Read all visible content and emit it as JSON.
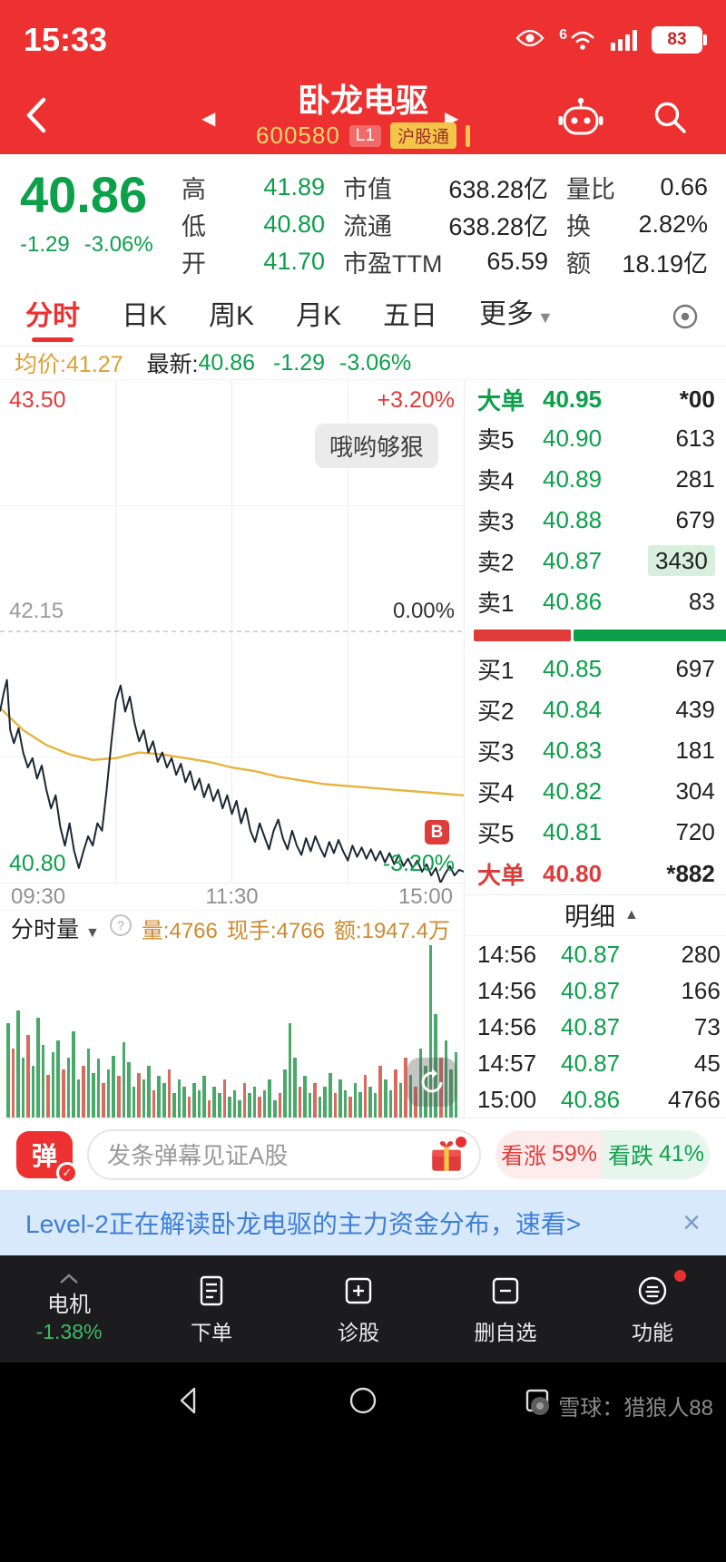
{
  "colors": {
    "accent_red": "#ed3030",
    "up": "#e03b3b",
    "down": "#0ca04a",
    "avg_line": "#e8b33c",
    "price_line": "#1c2733",
    "vol_up": "#d96a5f",
    "vol_down": "#48a968",
    "banner_blue": "#3f7fd6"
  },
  "status_bar": {
    "time": "15:33",
    "wifi_gen": "6",
    "battery": "83"
  },
  "header": {
    "title": "卧龙电驱",
    "code": "600580",
    "l1_badge": "L1",
    "hgt_badge": "沪股通"
  },
  "quote": {
    "price": "40.86",
    "change": "-1.29",
    "change_pct": "-3.06%",
    "col1": [
      {
        "label": "高",
        "value": "41.89"
      },
      {
        "label": "低",
        "value": "40.80"
      },
      {
        "label": "开",
        "value": "41.70"
      }
    ],
    "col2": [
      {
        "label": "市值",
        "value": "638.28亿"
      },
      {
        "label": "流通",
        "value": "638.28亿"
      },
      {
        "label": "市盈TTM",
        "value": "65.59"
      }
    ],
    "col3": [
      {
        "label": "量比",
        "value": "0.66"
      },
      {
        "label": "换",
        "value": "2.82%"
      },
      {
        "label": "额",
        "value": "18.19亿"
      }
    ]
  },
  "tabs": {
    "t0": "分时",
    "t1": "日K",
    "t2": "周K",
    "t3": "月K",
    "t4": "五日",
    "t5": "更多"
  },
  "avg_row": {
    "avg": "均价:41.27",
    "latest_label": "最新:",
    "latest": "40.86",
    "change": "-1.29",
    "change_pct": "-3.06%"
  },
  "chart": {
    "y_max": 43.5,
    "y_min": 40.8,
    "prev_close": 42.15,
    "label_top_price": "43.50",
    "label_top_pct": "+3.20%",
    "label_mid_price": "42.15",
    "label_mid_pct": "0.00%",
    "label_bottom_price": "40.80",
    "label_bottom_pct": "-3.20%",
    "bubble_text": "哦哟够狠",
    "buy_marker": "B",
    "x_labels": [
      "09:30",
      "11:30",
      "15:00"
    ],
    "price_series": [
      [
        0,
        41.72
      ],
      [
        0.8,
        41.82
      ],
      [
        1.5,
        41.89
      ],
      [
        2.2,
        41.62
      ],
      [
        3,
        41.55
      ],
      [
        4,
        41.63
      ],
      [
        5,
        41.5
      ],
      [
        6,
        41.42
      ],
      [
        7,
        41.47
      ],
      [
        8,
        41.36
      ],
      [
        9,
        41.43
      ],
      [
        10,
        41.3
      ],
      [
        11,
        41.2
      ],
      [
        12,
        41.27
      ],
      [
        13,
        41.1
      ],
      [
        14,
        41.0
      ],
      [
        15,
        41.12
      ],
      [
        16,
        40.97
      ],
      [
        17,
        40.88
      ],
      [
        18,
        40.97
      ],
      [
        19,
        41.05
      ],
      [
        20,
        41.0
      ],
      [
        21,
        41.12
      ],
      [
        22,
        41.08
      ],
      [
        23,
        41.3
      ],
      [
        24,
        41.55
      ],
      [
        25,
        41.78
      ],
      [
        26,
        41.86
      ],
      [
        27,
        41.72
      ],
      [
        28,
        41.8
      ],
      [
        29,
        41.66
      ],
      [
        30,
        41.56
      ],
      [
        31,
        41.62
      ],
      [
        32,
        41.5
      ],
      [
        33,
        41.56
      ],
      [
        34,
        41.45
      ],
      [
        35,
        41.5
      ],
      [
        36,
        41.42
      ],
      [
        37,
        41.47
      ],
      [
        38,
        41.38
      ],
      [
        39,
        41.44
      ],
      [
        40,
        41.34
      ],
      [
        41,
        41.4
      ],
      [
        42,
        41.3
      ],
      [
        43,
        41.36
      ],
      [
        44,
        41.26
      ],
      [
        45,
        41.33
      ],
      [
        46,
        41.24
      ],
      [
        47,
        41.3
      ],
      [
        48,
        41.2
      ],
      [
        49,
        41.27
      ],
      [
        50,
        41.17
      ],
      [
        51,
        41.24
      ],
      [
        52,
        41.12
      ],
      [
        53,
        41.2
      ],
      [
        54,
        41.08
      ],
      [
        55,
        41.02
      ],
      [
        56,
        41.12
      ],
      [
        57,
        41.05
      ],
      [
        58,
        40.98
      ],
      [
        59,
        41.08
      ],
      [
        60,
        41.14
      ],
      [
        61,
        41.04
      ],
      [
        62,
        40.98
      ],
      [
        63,
        41.08
      ],
      [
        64,
        41.0
      ],
      [
        65,
        40.95
      ],
      [
        66,
        41.04
      ],
      [
        67,
        40.97
      ],
      [
        68,
        41.05
      ],
      [
        69,
        40.99
      ],
      [
        70,
        40.94
      ],
      [
        71,
        41.02
      ],
      [
        72,
        40.96
      ],
      [
        73,
        41.03
      ],
      [
        74,
        40.97
      ],
      [
        75,
        40.92
      ],
      [
        76,
        41.0
      ],
      [
        77,
        40.94
      ],
      [
        78,
        40.99
      ],
      [
        79,
        40.93
      ],
      [
        80,
        40.98
      ],
      [
        81,
        40.92
      ],
      [
        82,
        40.97
      ],
      [
        83,
        40.91
      ],
      [
        84,
        40.96
      ],
      [
        85,
        40.9
      ],
      [
        86,
        40.95
      ],
      [
        87,
        40.89
      ],
      [
        88,
        40.93
      ],
      [
        89,
        40.88
      ],
      [
        90,
        40.92
      ],
      [
        91,
        40.86
      ],
      [
        92,
        40.9
      ],
      [
        93,
        40.84
      ],
      [
        94,
        40.88
      ],
      [
        95,
        40.8
      ],
      [
        96,
        40.85
      ],
      [
        97,
        40.89
      ],
      [
        98,
        40.84
      ],
      [
        99,
        40.87
      ],
      [
        100,
        40.86
      ]
    ],
    "avg_series": [
      [
        0,
        41.74
      ],
      [
        5,
        41.62
      ],
      [
        10,
        41.54
      ],
      [
        15,
        41.49
      ],
      [
        20,
        41.46
      ],
      [
        25,
        41.47
      ],
      [
        30,
        41.5
      ],
      [
        35,
        41.49
      ],
      [
        40,
        41.47
      ],
      [
        45,
        41.45
      ],
      [
        50,
        41.42
      ],
      [
        55,
        41.4
      ],
      [
        60,
        41.37
      ],
      [
        65,
        41.35
      ],
      [
        70,
        41.33
      ],
      [
        75,
        41.32
      ],
      [
        80,
        41.31
      ],
      [
        85,
        41.3
      ],
      [
        90,
        41.29
      ],
      [
        95,
        41.28
      ],
      [
        100,
        41.27
      ]
    ]
  },
  "volume": {
    "title": "分时量",
    "stat_vol": "量:4766",
    "stat_hands": "现手:4766",
    "stat_amount": "额:1947.4万",
    "bars": [
      [
        55,
        "g"
      ],
      [
        40,
        "r"
      ],
      [
        62,
        "g"
      ],
      [
        35,
        "g"
      ],
      [
        48,
        "r"
      ],
      [
        30,
        "g"
      ],
      [
        58,
        "g"
      ],
      [
        42,
        "g"
      ],
      [
        25,
        "r"
      ],
      [
        38,
        "g"
      ],
      [
        45,
        "g"
      ],
      [
        28,
        "r"
      ],
      [
        35,
        "g"
      ],
      [
        50,
        "g"
      ],
      [
        22,
        "g"
      ],
      [
        30,
        "r"
      ],
      [
        40,
        "g"
      ],
      [
        26,
        "g"
      ],
      [
        34,
        "g"
      ],
      [
        20,
        "r"
      ],
      [
        28,
        "g"
      ],
      [
        36,
        "g"
      ],
      [
        24,
        "r"
      ],
      [
        44,
        "g"
      ],
      [
        32,
        "g"
      ],
      [
        18,
        "g"
      ],
      [
        26,
        "r"
      ],
      [
        22,
        "g"
      ],
      [
        30,
        "g"
      ],
      [
        16,
        "r"
      ],
      [
        24,
        "g"
      ],
      [
        20,
        "g"
      ],
      [
        28,
        "r"
      ],
      [
        14,
        "g"
      ],
      [
        22,
        "g"
      ],
      [
        18,
        "g"
      ],
      [
        12,
        "r"
      ],
      [
        20,
        "g"
      ],
      [
        16,
        "g"
      ],
      [
        24,
        "g"
      ],
      [
        10,
        "r"
      ],
      [
        18,
        "g"
      ],
      [
        14,
        "g"
      ],
      [
        22,
        "r"
      ],
      [
        12,
        "g"
      ],
      [
        16,
        "g"
      ],
      [
        10,
        "g"
      ],
      [
        20,
        "r"
      ],
      [
        14,
        "g"
      ],
      [
        18,
        "g"
      ],
      [
        12,
        "r"
      ],
      [
        16,
        "g"
      ],
      [
        22,
        "g"
      ],
      [
        10,
        "g"
      ],
      [
        14,
        "r"
      ],
      [
        28,
        "g"
      ],
      [
        55,
        "g"
      ],
      [
        35,
        "g"
      ],
      [
        18,
        "r"
      ],
      [
        24,
        "g"
      ],
      [
        14,
        "g"
      ],
      [
        20,
        "r"
      ],
      [
        12,
        "g"
      ],
      [
        18,
        "g"
      ],
      [
        26,
        "g"
      ],
      [
        14,
        "r"
      ],
      [
        22,
        "g"
      ],
      [
        16,
        "g"
      ],
      [
        12,
        "r"
      ],
      [
        20,
        "g"
      ],
      [
        15,
        "g"
      ],
      [
        25,
        "r"
      ],
      [
        18,
        "g"
      ],
      [
        14,
        "g"
      ],
      [
        30,
        "r"
      ],
      [
        22,
        "g"
      ],
      [
        16,
        "g"
      ],
      [
        28,
        "r"
      ],
      [
        20,
        "g"
      ],
      [
        35,
        "r"
      ],
      [
        25,
        "g"
      ],
      [
        18,
        "r"
      ],
      [
        40,
        "g"
      ],
      [
        30,
        "g"
      ],
      [
        100,
        "g"
      ],
      [
        60,
        "g"
      ],
      [
        35,
        "r"
      ],
      [
        45,
        "g"
      ],
      [
        28,
        "g"
      ],
      [
        38,
        "g"
      ]
    ]
  },
  "order_book": {
    "big_sell": {
      "label": "大单",
      "price": "40.95",
      "vol": "*00"
    },
    "asks": [
      {
        "label": "卖5",
        "price": "40.90",
        "vol": "613"
      },
      {
        "label": "卖4",
        "price": "40.89",
        "vol": "281"
      },
      {
        "label": "卖3",
        "price": "40.88",
        "vol": "679"
      },
      {
        "label": "卖2",
        "price": "40.87",
        "vol": "3430"
      },
      {
        "label": "卖1",
        "price": "40.86",
        "vol": "83"
      }
    ],
    "bids": [
      {
        "label": "买1",
        "price": "40.85",
        "vol": "697"
      },
      {
        "label": "买2",
        "price": "40.84",
        "vol": "439"
      },
      {
        "label": "买3",
        "price": "40.83",
        "vol": "181"
      },
      {
        "label": "买4",
        "price": "40.82",
        "vol": "304"
      },
      {
        "label": "买5",
        "price": "40.81",
        "vol": "720"
      }
    ],
    "big_buy": {
      "label": "大单",
      "price": "40.80",
      "vol": "*882"
    },
    "ratio_red_pct": 38,
    "detail_title": "明细",
    "details": [
      {
        "time": "14:56",
        "price": "40.87",
        "vol": "280"
      },
      {
        "time": "14:56",
        "price": "40.87",
        "vol": "166"
      },
      {
        "time": "14:56",
        "price": "40.87",
        "vol": "73"
      },
      {
        "time": "14:57",
        "price": "40.87",
        "vol": "45"
      },
      {
        "time": "15:00",
        "price": "40.86",
        "vol": "4766"
      }
    ]
  },
  "danmu": {
    "badge": "弹",
    "placeholder": "发条弹幕见证A股",
    "bull_label": "看涨",
    "bull_pct": "59%",
    "bear_label": "看跌",
    "bear_pct": "41%"
  },
  "banner": {
    "text": "Level-2正在解读卧龙电驱的主力资金分布，速看>",
    "close": "×"
  },
  "app_nav": {
    "stock_name": "电机",
    "stock_pct": "-1.38%",
    "items": [
      "下单",
      "诊股",
      "删自选",
      "功能"
    ]
  },
  "sys": {
    "watermark": "雪球：猎狼人88"
  }
}
